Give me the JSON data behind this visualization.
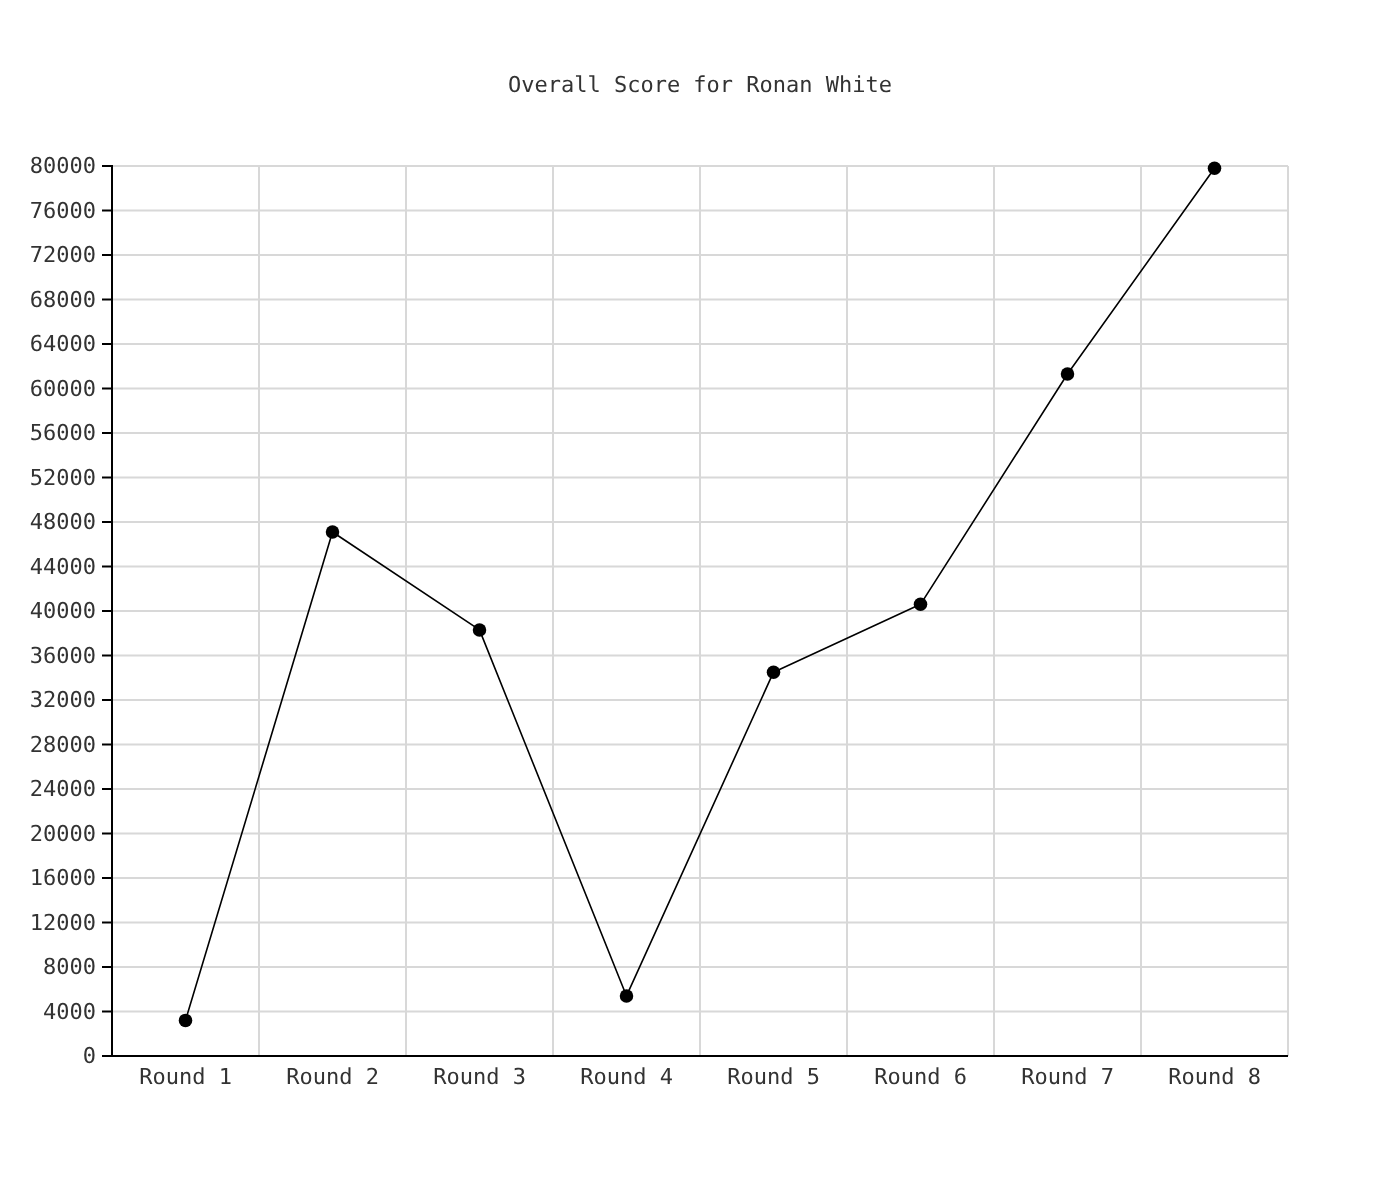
{
  "chart_data": {
    "type": "line",
    "title": "Overall Score for Ronan White",
    "categories": [
      "Round 1",
      "Round 2",
      "Round 3",
      "Round 4",
      "Round 5",
      "Round 6",
      "Round 7",
      "Round 8"
    ],
    "series": [
      {
        "color": "#000000",
        "values": [
          3200,
          47100,
          38300,
          5400,
          34500,
          40600,
          61300,
          79800
        ]
      }
    ],
    "ylim": [
      0,
      80000
    ],
    "yticks": [
      0,
      4000,
      8000,
      12000,
      16000,
      20000,
      24000,
      28000,
      32000,
      36000,
      40000,
      44000,
      48000,
      52000,
      56000,
      60000,
      64000,
      68000,
      72000,
      76000,
      80000
    ],
    "grid": true,
    "marker": "circle",
    "line_style": "solid"
  }
}
